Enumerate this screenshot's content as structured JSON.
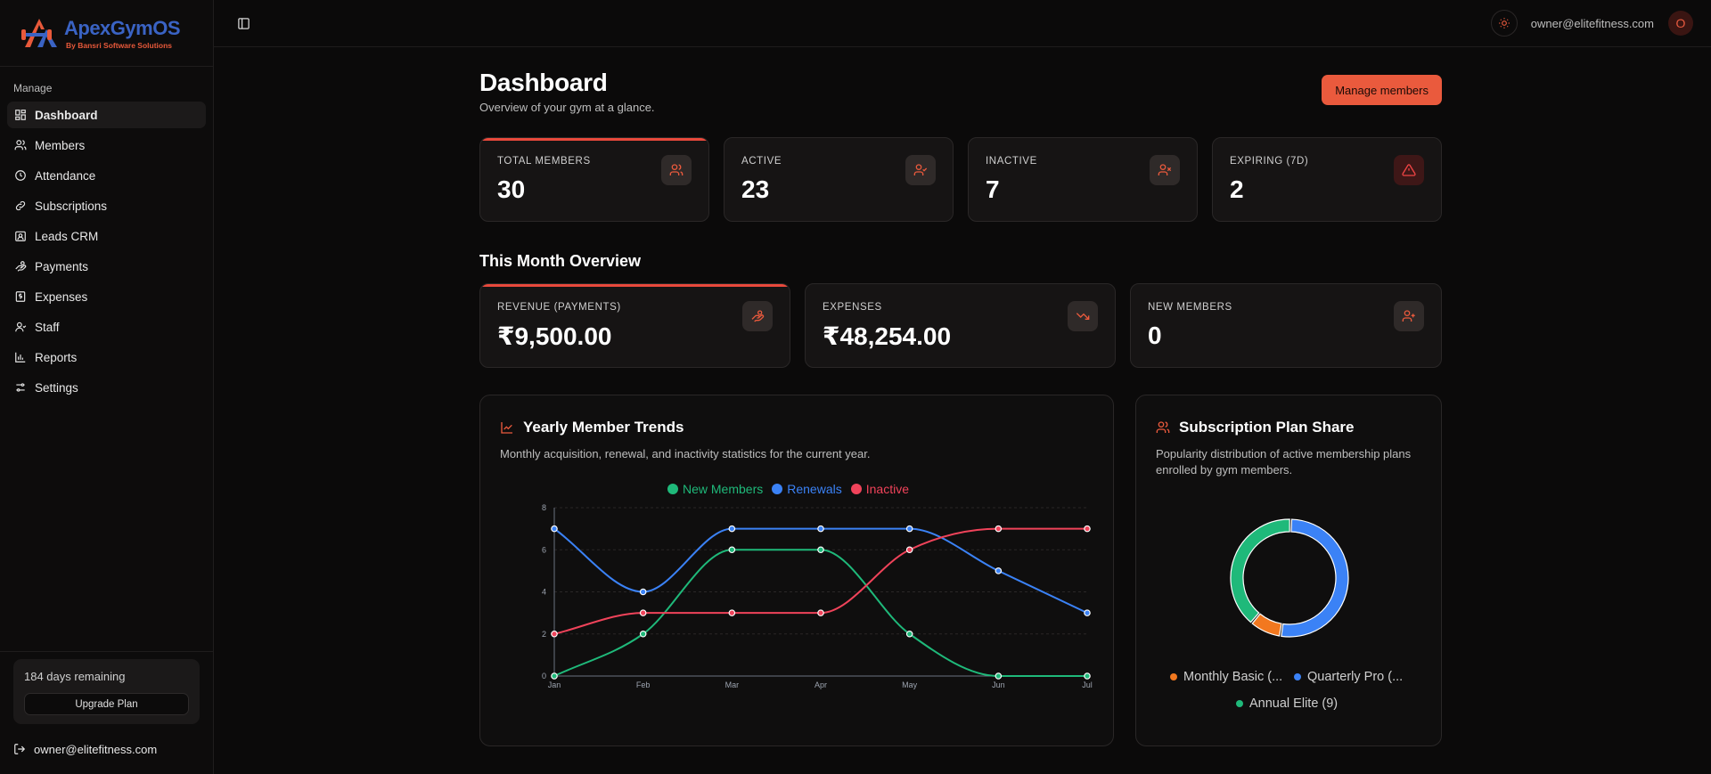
{
  "brand": {
    "name": "ApexGymOS",
    "sub": "By Bansri Software Solutions"
  },
  "sidebar": {
    "section": "Manage",
    "items": [
      {
        "label": "Dashboard",
        "icon": "grid-icon"
      },
      {
        "label": "Members",
        "icon": "users-icon"
      },
      {
        "label": "Attendance",
        "icon": "clock-icon"
      },
      {
        "label": "Subscriptions",
        "icon": "link-icon"
      },
      {
        "label": "Leads CRM",
        "icon": "contact-icon"
      },
      {
        "label": "Payments",
        "icon": "hand-coins-icon"
      },
      {
        "label": "Expenses",
        "icon": "receipt-icon"
      },
      {
        "label": "Staff",
        "icon": "user-icon"
      },
      {
        "label": "Reports",
        "icon": "bar-chart-icon"
      },
      {
        "label": "Settings",
        "icon": "sliders-icon"
      }
    ],
    "plan_days": "184 days remaining",
    "upgrade_label": "Upgrade Plan",
    "user_email": "owner@elitefitness.com"
  },
  "topbar": {
    "email": "owner@elitefitness.com",
    "avatar_initial": "O"
  },
  "page": {
    "title": "Dashboard",
    "subtitle": "Overview of your gym at a glance.",
    "manage_button": "Manage members"
  },
  "stats": [
    {
      "label": "TOTAL MEMBERS",
      "value": "30"
    },
    {
      "label": "ACTIVE",
      "value": "23"
    },
    {
      "label": "INACTIVE",
      "value": "7"
    },
    {
      "label": "EXPIRING (7D)",
      "value": "2"
    }
  ],
  "month": {
    "title": "This Month Overview",
    "stats": [
      {
        "label": "REVENUE (PAYMENTS)",
        "value": "₹9,500.00"
      },
      {
        "label": "EXPENSES",
        "value": "₹48,254.00"
      },
      {
        "label": "NEW MEMBERS",
        "value": "0"
      }
    ]
  },
  "trends": {
    "title": "Yearly Member Trends",
    "subtitle": "Monthly acquisition, renewal, and inactivity statistics for the current year."
  },
  "plans": {
    "title": "Subscription Plan Share",
    "subtitle_1": "Popularity distribution of active membership plans",
    "subtitle_2": "enrolled by gym members.",
    "legend": [
      "Monthly Basic (...",
      "Quarterly Pro (...",
      "Annual Elite (9)"
    ]
  },
  "colors": {
    "accent": "#ea5a3d",
    "green": "#1fb97a",
    "blue": "#3b82f6",
    "red": "#f0435a",
    "orange": "#f2781f"
  },
  "chart_data": [
    {
      "type": "line",
      "x": [
        "Jan",
        "Feb",
        "Mar",
        "Apr",
        "May",
        "Jun",
        "Jul"
      ],
      "yticks": [
        "0",
        "2",
        "4",
        "6",
        "8"
      ],
      "ylim": [
        0,
        8
      ],
      "legend_position": "top-center",
      "series": [
        {
          "name": "New Members",
          "color": "#1fb97a",
          "values": [
            0,
            2,
            6,
            6,
            2,
            0,
            0
          ]
        },
        {
          "name": "Renewals",
          "color": "#3b82f6",
          "values": [
            7,
            4,
            7,
            7,
            7,
            5,
            3
          ]
        },
        {
          "name": "Inactive",
          "color": "#f0435a",
          "values": [
            2,
            3,
            3,
            3,
            6,
            7,
            7
          ]
        }
      ]
    },
    {
      "type": "pie",
      "donut": true,
      "slices": [
        {
          "name": "Quarterly Pro",
          "value": 12,
          "color": "#3b82f6"
        },
        {
          "name": "Monthly Basic",
          "value": 2,
          "color": "#f2781f"
        },
        {
          "name": "Annual Elite",
          "value": 9,
          "color": "#1fb97a"
        }
      ]
    }
  ]
}
